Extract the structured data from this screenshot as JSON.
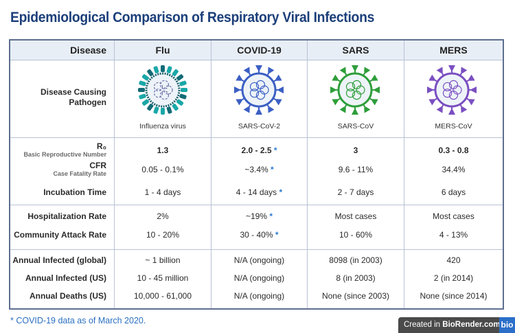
{
  "title": "Epidemiological Comparison of Respiratory Viral Infections",
  "header": {
    "label_col": "Disease",
    "diseases": [
      "Flu",
      "COVID-19",
      "SARS",
      "MERS"
    ]
  },
  "pathogen_row": {
    "label_line1": "Disease Causing",
    "label_line2": "Pathogen",
    "pathogens": [
      {
        "name": "Influenza virus",
        "icon": "influenza-virus-icon",
        "color": "#1aa7a7"
      },
      {
        "name": "SARS-CoV-2",
        "icon": "sars-cov-2-icon",
        "color": "#3b5fc4"
      },
      {
        "name": "SARS-CoV",
        "icon": "sars-cov-icon",
        "color": "#2e9e3a"
      },
      {
        "name": "MERS-CoV",
        "icon": "mers-cov-icon",
        "color": "#7b4fc1"
      }
    ]
  },
  "rows": {
    "r0": {
      "label": "R₀",
      "sublabel": "Basic Reproductive Number",
      "values": [
        "1.3",
        "2.0 - 2.5",
        "3",
        "0.3 - 0.8"
      ],
      "stars": [
        false,
        true,
        false,
        false
      ]
    },
    "cfr": {
      "label": "CFR",
      "sublabel": "Case Fatality Rate",
      "values": [
        "0.05 - 0.1%",
        "~3.4%",
        "9.6 - 11%",
        "34.4%"
      ],
      "stars": [
        false,
        true,
        false,
        false
      ]
    },
    "incubation": {
      "label": "Incubation Time",
      "values": [
        "1 - 4 days",
        "4 - 14 days",
        "2 - 7 days",
        "6 days"
      ],
      "stars": [
        false,
        true,
        false,
        false
      ]
    },
    "hospitalization": {
      "label": "Hospitalization Rate",
      "values": [
        "2%",
        "~19%",
        "Most cases",
        "Most cases"
      ],
      "stars": [
        false,
        true,
        false,
        false
      ]
    },
    "attack": {
      "label": "Community Attack Rate",
      "values": [
        "10 - 20%",
        "30 - 40%",
        "10 - 60%",
        "4 - 13%"
      ],
      "stars": [
        false,
        true,
        false,
        false
      ]
    },
    "infected_global": {
      "label": "Annual Infected (global)",
      "values": [
        "~ 1 billion",
        "N/A (ongoing)",
        "8098 (in 2003)",
        "420"
      ]
    },
    "infected_us": {
      "label": "Annual Infected (US)",
      "values": [
        "10 - 45 million",
        "N/A (ongoing)",
        "8 (in 2003)",
        "2 (in 2014)"
      ]
    },
    "deaths_us": {
      "label": "Annual Deaths (US)",
      "values": [
        "10,000 - 61,000",
        "N/A (ongoing)",
        "None (since 2003)",
        "None (since 2014)"
      ]
    }
  },
  "star_symbol": "*",
  "footnote": "* COVID-19 data as of March 2020.",
  "badge": {
    "text_prefix": "Created in ",
    "text_brand": "BioRender.com",
    "logo": "bio"
  },
  "colors": {
    "title": "#1c3f7a",
    "star": "#2a7ad1",
    "header_bg": "#e8eef6",
    "border": "#5d6f8f"
  }
}
